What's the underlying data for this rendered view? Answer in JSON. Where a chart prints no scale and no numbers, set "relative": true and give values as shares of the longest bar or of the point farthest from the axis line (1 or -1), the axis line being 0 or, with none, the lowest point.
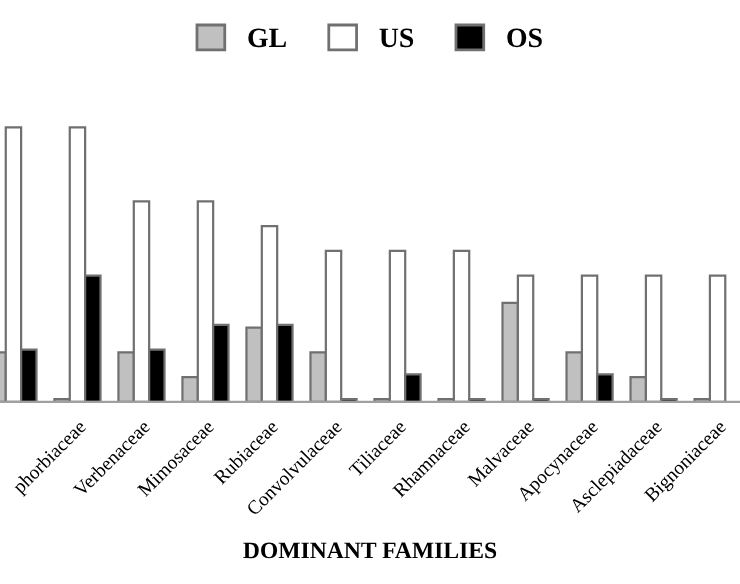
{
  "chart_data": {
    "type": "bar",
    "relative": true,
    "xlabel": "DOMINANT FAMILIES",
    "legend": "top",
    "categories": [
      null,
      "phorbiaceae",
      "Verbenaceae",
      "Mimosaceae",
      "Rubiaceae",
      "Convolvulaceae",
      "Tiliaceae",
      "Rhamnaceae",
      "Malvaceae",
      "Apocynaceae",
      "Asclepiadaceae",
      "Bignoniaceae"
    ],
    "series": [
      {
        "name": "GL",
        "color": "#c0c0c0",
        "values": [
          0.18,
          0.01,
          0.18,
          0.09,
          0.27,
          0.18,
          0.01,
          0.01,
          0.36,
          0.18,
          0.09,
          0.01
        ]
      },
      {
        "name": "US",
        "color": "#ffffff",
        "values": [
          1.0,
          1.0,
          0.73,
          0.73,
          0.64,
          0.55,
          0.55,
          0.55,
          0.46,
          0.46,
          0.46,
          0.46
        ]
      },
      {
        "name": "OS",
        "color": "#000000",
        "values": [
          0.19,
          0.46,
          0.19,
          0.28,
          0.28,
          0.01,
          0.1,
          0.01,
          0.01,
          0.1,
          0.01,
          null
        ]
      }
    ]
  }
}
